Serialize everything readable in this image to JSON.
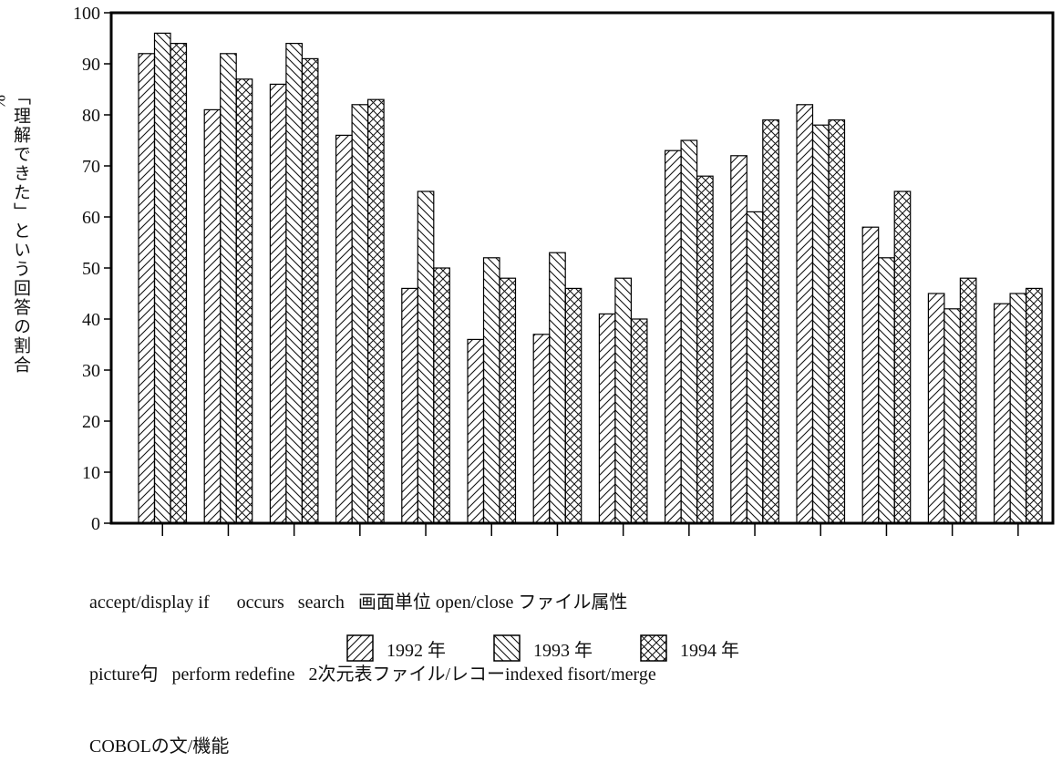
{
  "chart_data": {
    "type": "bar",
    "title": "",
    "ylabel": "「理解できた」という回答の割合",
    "ylabel_unit": "%",
    "xlabel": "COBOLの文/機能",
    "ylim": [
      0,
      100
    ],
    "yticks": [
      0,
      10,
      20,
      30,
      40,
      50,
      60,
      70,
      80,
      90,
      100
    ],
    "categories": [
      "accept/display",
      "picture句",
      "if",
      "perform",
      "occurs",
      "redefine",
      "search",
      "2次元表",
      "画面単位",
      "ファイル/レコー",
      "open/close",
      "indexed fi",
      "ファイル属性",
      "sort/merge"
    ],
    "category_label_lines": [
      "accept/display if      occurs   search   画面単位 open/close ファイル属性",
      "picture句   perform redefine   2次元表ファイル/レコーindexed fisort/merge",
      "COBOLの文/機能"
    ],
    "series": [
      {
        "name": "1992年",
        "values": [
          92,
          81,
          86,
          76,
          46,
          36,
          37,
          41,
          73,
          72,
          82,
          58,
          45,
          43
        ]
      },
      {
        "name": "1993年",
        "values": [
          96,
          92,
          94,
          82,
          65,
          52,
          53,
          48,
          75,
          61,
          78,
          52,
          42,
          45
        ]
      },
      {
        "name": "1994年",
        "values": [
          94,
          87,
          91,
          83,
          50,
          48,
          46,
          40,
          68,
          79,
          79,
          65,
          48,
          46
        ]
      }
    ],
    "patterns": [
      "forward-hatch",
      "back-hatch",
      "cross-hatch"
    ],
    "grid": false,
    "legend_position": "bottom"
  },
  "legend": [
    {
      "label": "1992 年",
      "pattern": "forward-hatch"
    },
    {
      "label": "1993 年",
      "pattern": "back-hatch"
    },
    {
      "label": "1994 年",
      "pattern": "cross-hatch"
    }
  ]
}
